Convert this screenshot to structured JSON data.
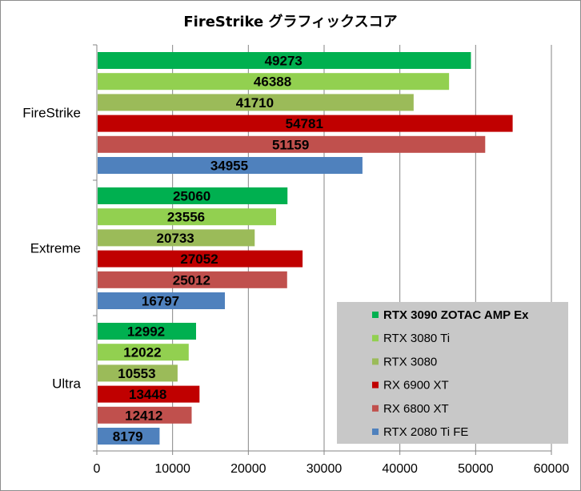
{
  "chart_data": {
    "type": "bar",
    "orientation": "horizontal",
    "title": "FireStrike グラフィックスコア",
    "xlabel": "",
    "ylabel": "",
    "xlim": [
      0,
      60000
    ],
    "xticks": [
      0,
      10000,
      20000,
      30000,
      40000,
      50000,
      60000
    ],
    "grid": "vertical",
    "legend_position": "bottom-right",
    "categories": [
      "FireStrike",
      "Extreme",
      "Ultra"
    ],
    "series": [
      {
        "name": "RTX 3090 ZOTAC AMP Ex",
        "color": "#00b050",
        "bold": true,
        "values": [
          49273,
          25060,
          12992
        ]
      },
      {
        "name": "RTX 3080 Ti",
        "color": "#92d050",
        "bold": false,
        "values": [
          46388,
          23556,
          12022
        ]
      },
      {
        "name": "RTX 3080",
        "color": "#9bbb59",
        "bold": false,
        "values": [
          41710,
          20733,
          10553
        ]
      },
      {
        "name": "RX 6900 XT",
        "color": "#c00000",
        "bold": false,
        "values": [
          54781,
          27052,
          13448
        ]
      },
      {
        "name": "RX 6800 XT",
        "color": "#c0504d",
        "bold": false,
        "values": [
          51159,
          25012,
          12412
        ]
      },
      {
        "name": "RTX 2080 Ti FE",
        "color": "#4f81bd",
        "bold": false,
        "values": [
          34955,
          16797,
          8179
        ]
      }
    ],
    "legend_background": "#c8c8c8"
  }
}
